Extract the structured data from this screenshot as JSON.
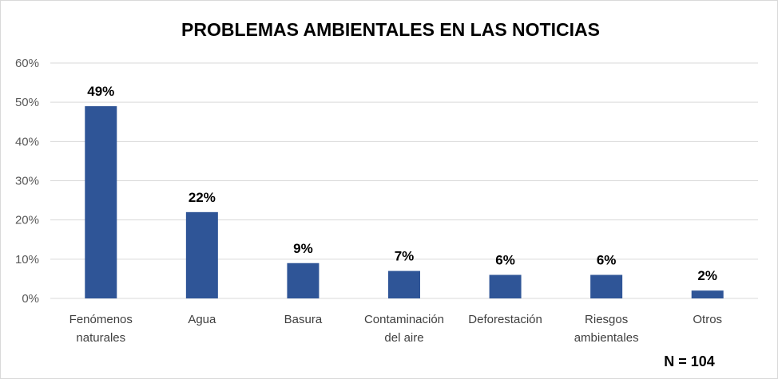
{
  "chart_data": {
    "type": "bar",
    "title": "PROBLEMAS AMBIENTALES EN LAS NOTICIAS",
    "categories": [
      [
        "Fenómenos",
        "naturales"
      ],
      [
        "Agua"
      ],
      [
        "Basura"
      ],
      [
        "Contaminación",
        "del aire"
      ],
      [
        "Deforestación"
      ],
      [
        "Riesgos",
        "ambientales"
      ],
      [
        "Otros"
      ]
    ],
    "values": [
      49,
      22,
      9,
      7,
      6,
      6,
      2
    ],
    "data_labels": [
      "49%",
      "22%",
      "9%",
      "7%",
      "6%",
      "6%",
      "2%"
    ],
    "yticks": [
      "0%",
      "10%",
      "20%",
      "30%",
      "40%",
      "50%",
      "60%"
    ],
    "ylim": [
      0,
      60
    ],
    "xlabel": "",
    "ylabel": "",
    "grid": true,
    "bar_color": "#2F5597",
    "annotation": "N = 104"
  }
}
